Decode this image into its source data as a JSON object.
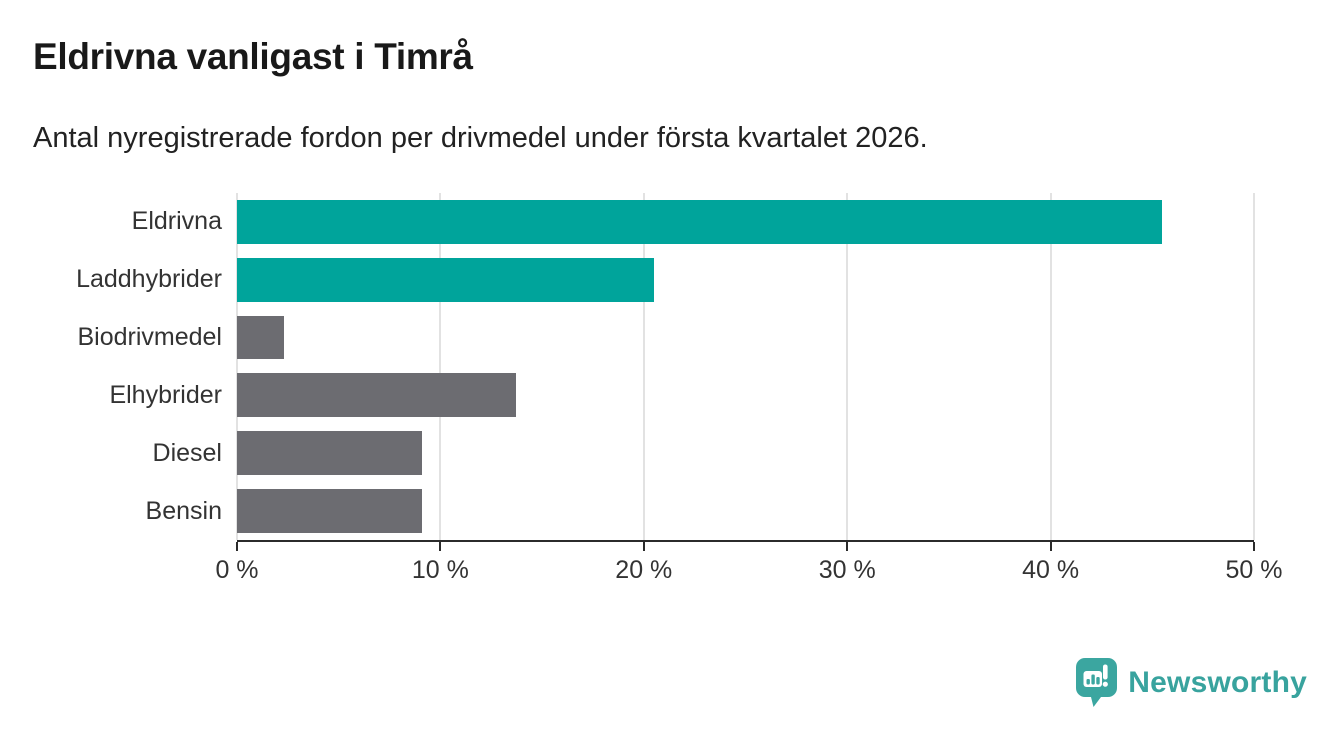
{
  "header": {
    "title": "Eldrivna vanligast i Timrå",
    "subtitle": "Antal nyregistrerade fordon per drivmedel under första kvartalet 2026."
  },
  "chart_data": {
    "type": "bar",
    "orientation": "horizontal",
    "title": "Eldrivna vanligast i Timrå",
    "subtitle": "Antal nyregistrerade fordon per drivmedel under första kvartalet 2026.",
    "categories": [
      "Eldrivna",
      "Laddhybrider",
      "Biodrivmedel",
      "Elhybrider",
      "Diesel",
      "Bensin"
    ],
    "values": [
      45.5,
      20.5,
      2.3,
      13.7,
      9.1,
      9.1
    ],
    "unit": "%",
    "bar_colors": [
      "#00a49b",
      "#00a49b",
      "#6c6c71",
      "#6c6c71",
      "#6c6c71",
      "#6c6c71"
    ],
    "xlabel": "",
    "ylabel": "",
    "xlim": [
      0,
      50
    ],
    "x_ticks": [
      0,
      10,
      20,
      30,
      40,
      50
    ],
    "x_tick_labels": [
      "0 %",
      "10 %",
      "20 %",
      "30 %",
      "40 %",
      "50 %"
    ],
    "grid": "vertical-gridlines",
    "legend": "none"
  },
  "colors": {
    "accent_teal": "#00a49b",
    "neutral_gray": "#6c6c71",
    "brand_teal": "#38a39e",
    "gridline": "#e2e2e2",
    "axis": "#2b2b2b"
  },
  "footer": {
    "brand": "Newsworthy"
  }
}
